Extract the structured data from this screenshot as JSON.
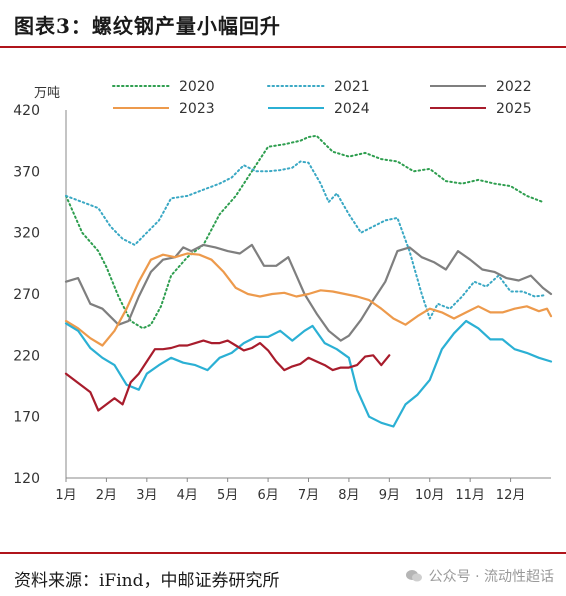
{
  "header": {
    "title": "图表3：螺纹钢产量小幅回升"
  },
  "footer": {
    "source": "资料来源：iFind，中邮证券研究所"
  },
  "watermark": {
    "text": "公众号 · 流动性超话"
  },
  "chart_data": {
    "type": "line",
    "ylabel": "万吨",
    "ylim": [
      120,
      420
    ],
    "yticks": [
      120,
      170,
      220,
      270,
      320,
      370,
      420
    ],
    "x_tick_labels": [
      "1月",
      "2月",
      "3月",
      "4月",
      "5月",
      "6月",
      "7月",
      "8月",
      "9月",
      "10月",
      "11月",
      "12月"
    ],
    "legend": [
      "2020",
      "2021",
      "2022",
      "2023",
      "2024",
      "2025"
    ],
    "series": [
      {
        "name": "2020",
        "color": "#2e9e4f",
        "style": "dotted",
        "x": [
          1.0,
          1.4,
          1.8,
          2.0,
          2.3,
          2.6,
          2.9,
          3.1,
          3.35,
          3.6,
          4.0,
          4.4,
          4.8,
          5.2,
          5.6,
          6.0,
          6.4,
          6.8,
          7.0,
          7.2,
          7.6,
          8.0,
          8.4,
          8.8,
          9.2,
          9.6,
          10.0,
          10.4,
          10.8,
          11.2,
          11.6,
          12.0,
          12.4,
          12.8
        ],
        "values": [
          350,
          320,
          305,
          292,
          268,
          248,
          242,
          245,
          260,
          285,
          300,
          310,
          335,
          350,
          370,
          390,
          392,
          395,
          398,
          399,
          386,
          382,
          385,
          380,
          378,
          370,
          372,
          362,
          360,
          363,
          360,
          358,
          350,
          345
        ]
      },
      {
        "name": "2021",
        "color": "#3aa8c4",
        "style": "dotted",
        "x": [
          1.0,
          1.4,
          1.8,
          2.1,
          2.4,
          2.7,
          3.0,
          3.3,
          3.6,
          4.0,
          4.4,
          4.8,
          5.1,
          5.4,
          5.7,
          6.0,
          6.3,
          6.6,
          6.8,
          7.0,
          7.3,
          7.5,
          7.7,
          8.0,
          8.3,
          8.6,
          8.9,
          9.2,
          9.5,
          9.8,
          10.0,
          10.2,
          10.5,
          10.8,
          11.1,
          11.4,
          11.7,
          12.0,
          12.3,
          12.6,
          12.85
        ],
        "values": [
          350,
          345,
          340,
          325,
          315,
          310,
          320,
          330,
          348,
          350,
          355,
          360,
          365,
          375,
          370,
          370,
          371,
          373,
          378,
          377,
          360,
          345,
          352,
          335,
          320,
          325,
          330,
          332,
          305,
          270,
          250,
          262,
          258,
          268,
          280,
          276,
          285,
          272,
          272,
          268,
          269
        ]
      },
      {
        "name": "2022",
        "color": "#7f7f7f",
        "style": "solid",
        "x": [
          1.0,
          1.3,
          1.6,
          1.9,
          2.3,
          2.55,
          2.8,
          3.1,
          3.4,
          3.7,
          3.9,
          4.1,
          4.4,
          4.7,
          5.0,
          5.3,
          5.6,
          5.9,
          6.2,
          6.5,
          6.7,
          6.9,
          7.2,
          7.5,
          7.8,
          8.0,
          8.3,
          8.6,
          8.9,
          9.2,
          9.5,
          9.8,
          10.1,
          10.4,
          10.7,
          11.0,
          11.3,
          11.6,
          11.9,
          12.2,
          12.5,
          12.8,
          13.0
        ],
        "values": [
          280,
          283,
          262,
          258,
          245,
          248,
          268,
          288,
          298,
          300,
          308,
          305,
          310,
          308,
          305,
          303,
          310,
          293,
          293,
          300,
          285,
          270,
          254,
          240,
          232,
          236,
          249,
          265,
          280,
          305,
          308,
          300,
          296,
          290,
          305,
          298,
          290,
          288,
          283,
          281,
          285,
          275,
          270
        ]
      },
      {
        "name": "2023",
        "color": "#ed9a4c",
        "style": "solid",
        "x": [
          1.0,
          1.3,
          1.6,
          1.9,
          2.2,
          2.5,
          2.8,
          3.1,
          3.4,
          3.7,
          4.0,
          4.3,
          4.6,
          4.9,
          5.2,
          5.5,
          5.8,
          6.1,
          6.4,
          6.7,
          7.0,
          7.3,
          7.6,
          7.9,
          8.2,
          8.5,
          8.8,
          9.1,
          9.4,
          9.7,
          10.0,
          10.3,
          10.6,
          10.9,
          11.2,
          11.5,
          11.8,
          12.1,
          12.4,
          12.7,
          12.9,
          13.0
        ],
        "values": [
          248,
          242,
          234,
          228,
          240,
          258,
          280,
          298,
          302,
          300,
          303,
          302,
          298,
          288,
          275,
          270,
          268,
          270,
          271,
          268,
          270,
          273,
          272,
          270,
          268,
          265,
          258,
          250,
          245,
          252,
          258,
          255,
          250,
          255,
          260,
          255,
          255,
          258,
          260,
          256,
          258,
          252
        ]
      },
      {
        "name": "2024",
        "color": "#2bb0d4",
        "style": "solid",
        "x": [
          1.0,
          1.3,
          1.6,
          1.9,
          2.2,
          2.5,
          2.8,
          3.0,
          3.3,
          3.6,
          3.9,
          4.2,
          4.5,
          4.8,
          5.1,
          5.4,
          5.7,
          6.0,
          6.3,
          6.6,
          6.9,
          7.1,
          7.4,
          7.7,
          8.0,
          8.2,
          8.5,
          8.8,
          9.1,
          9.4,
          9.7,
          10.0,
          10.3,
          10.6,
          10.9,
          11.2,
          11.5,
          11.8,
          12.1,
          12.4,
          12.7,
          13.0
        ],
        "values": [
          246,
          240,
          226,
          218,
          212,
          196,
          192,
          205,
          212,
          218,
          214,
          212,
          208,
          218,
          222,
          230,
          235,
          235,
          240,
          232,
          240,
          244,
          230,
          225,
          218,
          192,
          170,
          165,
          162,
          180,
          188,
          200,
          225,
          238,
          248,
          242,
          233,
          233,
          225,
          222,
          218,
          215
        ]
      },
      {
        "name": "2025",
        "color": "#a81c2c",
        "style": "solid",
        "x": [
          1.0,
          1.2,
          1.4,
          1.6,
          1.8,
          2.0,
          2.2,
          2.4,
          2.6,
          2.8,
          3.0,
          3.2,
          3.4,
          3.6,
          3.8,
          4.0,
          4.2,
          4.4,
          4.6,
          4.8,
          5.0,
          5.2,
          5.4,
          5.6,
          5.8,
          6.0,
          6.2,
          6.4,
          6.6,
          6.8,
          7.0,
          7.2,
          7.4,
          7.6,
          7.8,
          8.0,
          8.2,
          8.4,
          8.6,
          8.8,
          9.0
        ],
        "values": [
          205,
          200,
          195,
          190,
          175,
          180,
          185,
          180,
          198,
          205,
          215,
          225,
          225,
          226,
          228,
          228,
          230,
          232,
          230,
          230,
          232,
          228,
          224,
          226,
          230,
          224,
          215,
          208,
          211,
          213,
          218,
          215,
          212,
          208,
          210,
          210,
          212,
          219,
          220,
          212,
          220
        ]
      }
    ]
  }
}
